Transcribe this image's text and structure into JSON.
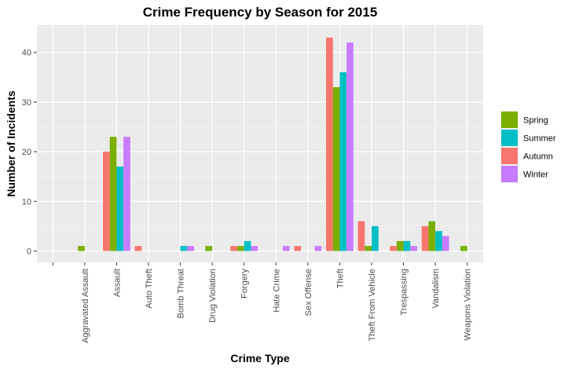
{
  "chart_data": {
    "type": "bar",
    "title": "Crime Frequency by Season for 2015",
    "xlabel": "Crime Type",
    "ylabel": "Number of Incidents",
    "ylim": [
      -2.3,
      45.5
    ],
    "yticks": [
      0,
      10,
      20,
      30,
      40
    ],
    "grid": true,
    "legend_position": "right",
    "categories": [
      "",
      "Aggravated Assault",
      "Assault",
      "Auto Theft",
      "Bomb Threat",
      "Drug Violation",
      "Forgery",
      "Hate Crime",
      "Sex Offense",
      "Theft",
      "Theft From Vehicle",
      "Trespassing",
      "Vandalism",
      "Weapons Violation"
    ],
    "series": [
      {
        "name": "Autumn",
        "color": "#F8766D",
        "values": [
          0,
          0,
          20,
          1,
          0,
          0,
          1,
          0,
          1,
          43,
          6,
          1,
          5,
          0
        ]
      },
      {
        "name": "Spring",
        "color": "#7CAE00",
        "values": [
          0,
          1,
          23,
          0,
          0,
          1,
          1,
          0,
          0,
          33,
          1,
          2,
          6,
          1
        ]
      },
      {
        "name": "Summer",
        "color": "#00BFC4",
        "values": [
          0,
          0,
          17,
          0,
          1,
          0,
          2,
          0,
          0,
          36,
          5,
          2,
          4,
          0
        ]
      },
      {
        "name": "Winter",
        "color": "#C77CFF",
        "values": [
          0,
          0,
          23,
          0,
          1,
          0,
          1,
          1,
          1,
          42,
          0,
          1,
          3,
          0
        ]
      }
    ],
    "legend_order": [
      "Spring",
      "Summer",
      "Autumn",
      "Winter"
    ]
  }
}
